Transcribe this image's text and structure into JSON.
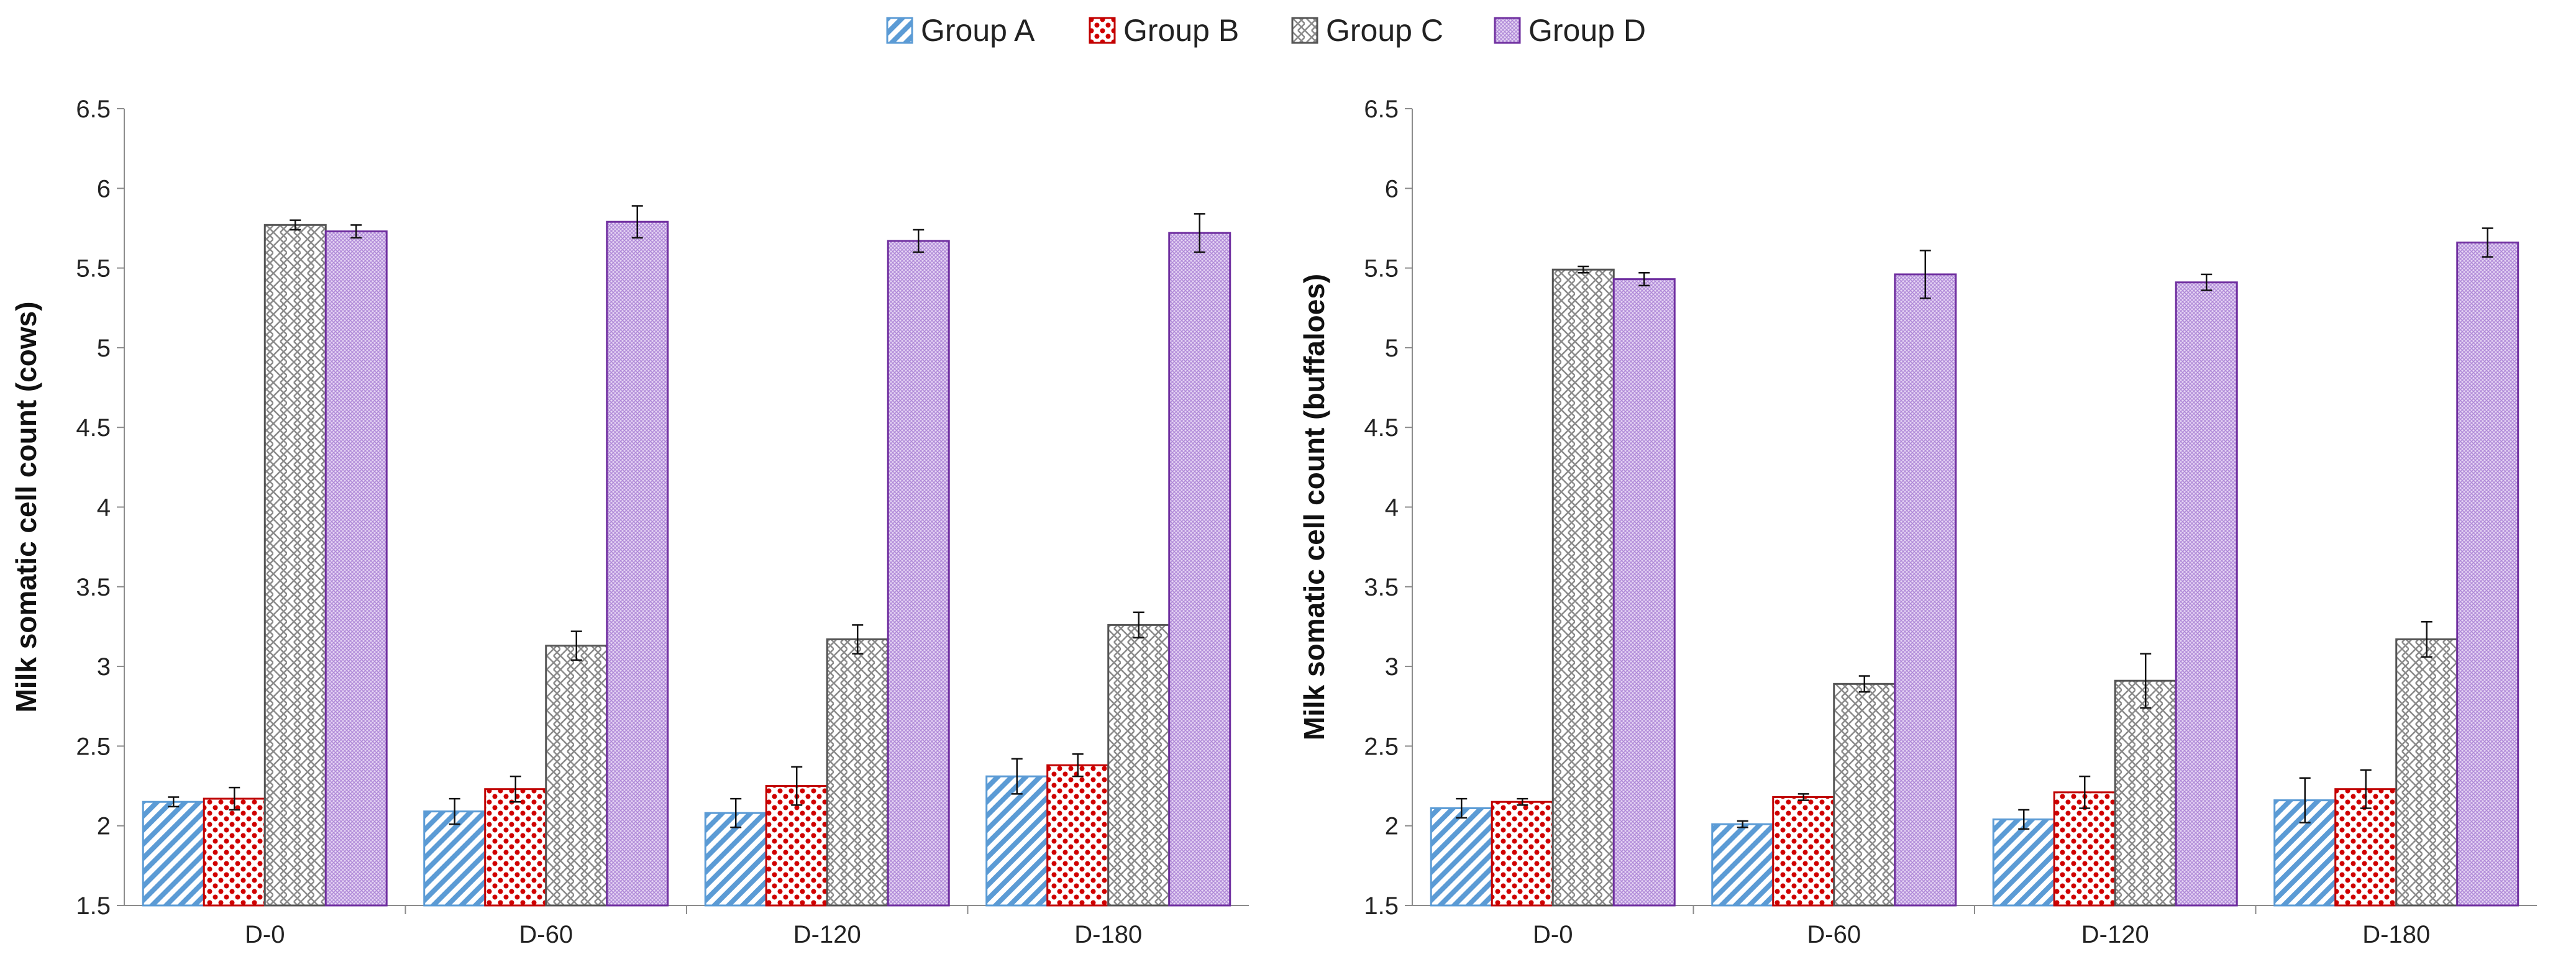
{
  "legend": [
    {
      "name": "Group A",
      "key": "A"
    },
    {
      "name": "Group B",
      "key": "B"
    },
    {
      "name": "Group C",
      "key": "C"
    },
    {
      "name": "Group D",
      "key": "D"
    }
  ],
  "colors": {
    "A": {
      "stroke": "#5b9bd5",
      "fill": "#5b9bd5",
      "bg": "#ffffff"
    },
    "B": {
      "stroke": "#c00000",
      "fill": "#d00000",
      "bg": "#ffffff"
    },
    "C": {
      "stroke": "#555555",
      "fill": "#8a8a8a",
      "bg": "#ffffff"
    },
    "D": {
      "stroke": "#7030a0",
      "fill": "#b08ad8",
      "bg": "#e6d6f4"
    }
  },
  "chart_data": [
    {
      "type": "bar",
      "ylabel": "Milk somatic cell count (cows)",
      "ylim": [
        1.5,
        6.5
      ],
      "yticks": [
        "1.5",
        "2",
        "2.5",
        "3",
        "3.5",
        "4",
        "4.5",
        "5",
        "5.5",
        "6",
        "6.5"
      ],
      "categories": [
        "D-0",
        "D-60",
        "D-120",
        "D-180"
      ],
      "series": [
        {
          "name": "Group A",
          "values": [
            2.15,
            2.09,
            2.08,
            2.31
          ],
          "errors": [
            0.03,
            0.08,
            0.09,
            0.11
          ]
        },
        {
          "name": "Group B",
          "values": [
            2.17,
            2.23,
            2.25,
            2.38
          ],
          "errors": [
            0.07,
            0.08,
            0.12,
            0.07
          ]
        },
        {
          "name": "Group C",
          "values": [
            5.77,
            3.13,
            3.17,
            3.26
          ],
          "errors": [
            0.03,
            0.09,
            0.09,
            0.08
          ]
        },
        {
          "name": "Group D",
          "values": [
            5.73,
            5.79,
            5.67,
            5.72
          ],
          "errors": [
            0.04,
            0.1,
            0.07,
            0.12
          ]
        }
      ]
    },
    {
      "type": "bar",
      "ylabel": "Milk somatic cell count (buffaloes)",
      "ylim": [
        1.5,
        6.5
      ],
      "yticks": [
        "1.5",
        "2",
        "2.5",
        "3",
        "3.5",
        "4",
        "4.5",
        "5",
        "5.5",
        "6",
        "6.5"
      ],
      "categories": [
        "D-0",
        "D-60",
        "D-120",
        "D-180"
      ],
      "series": [
        {
          "name": "Group A",
          "values": [
            2.11,
            2.01,
            2.04,
            2.16
          ],
          "errors": [
            0.06,
            0.02,
            0.06,
            0.14
          ]
        },
        {
          "name": "Group B",
          "values": [
            2.15,
            2.18,
            2.21,
            2.23
          ],
          "errors": [
            0.02,
            0.02,
            0.1,
            0.12
          ]
        },
        {
          "name": "Group C",
          "values": [
            5.49,
            2.89,
            2.91,
            3.17
          ],
          "errors": [
            0.02,
            0.05,
            0.17,
            0.11
          ]
        },
        {
          "name": "Group D",
          "values": [
            5.43,
            5.46,
            5.41,
            5.66
          ],
          "errors": [
            0.04,
            0.15,
            0.05,
            0.09
          ]
        }
      ]
    }
  ]
}
